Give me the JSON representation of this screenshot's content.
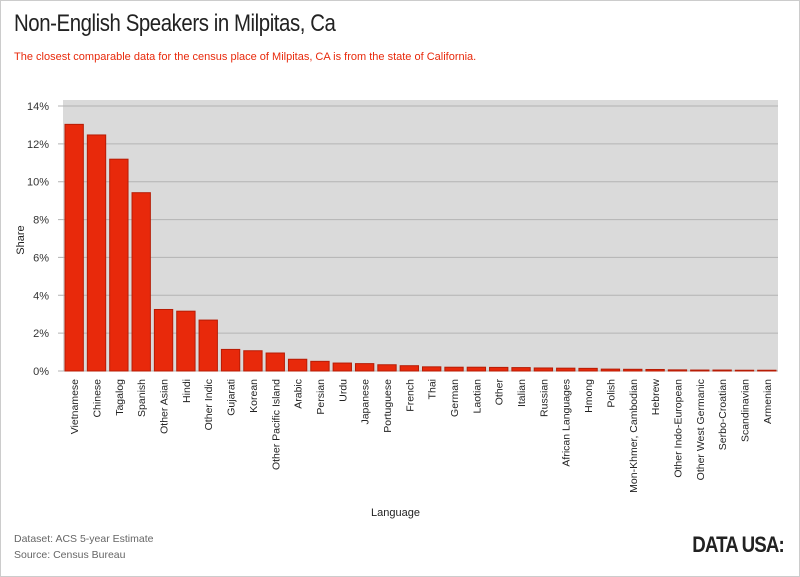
{
  "title": "Non-English Speakers in Milpitas, Ca",
  "subtitle": "The closest comparable data for the census place of Milpitas, CA is from the state of California.",
  "footer": {
    "dataset": "Dataset: ACS 5-year Estimate",
    "source": "Source: Census Bureau",
    "logo": "DATA USA:"
  },
  "colors": {
    "bar": "#e8290b",
    "bar_stroke": "#b71c05",
    "plot_bg": "#dadada",
    "grid": "#b3b3b3",
    "subtitle": "#e8290b"
  },
  "chart_data": {
    "type": "bar",
    "xlabel": "Language",
    "ylabel": "Share",
    "ylim": [
      0,
      14
    ],
    "yticks": [
      "0%",
      "2%",
      "4%",
      "6%",
      "8%",
      "10%",
      "12%",
      "14%"
    ],
    "grid": true,
    "categories": [
      "Vietnamese",
      "Chinese",
      "Tagalog",
      "Spanish",
      "Other Asian",
      "Hindi",
      "Other Indic",
      "Gujarati",
      "Korean",
      "Other Pacific Island",
      "Arabic",
      "Persian",
      "Urdu",
      "Japanese",
      "Portuguese",
      "French",
      "Thai",
      "German",
      "Laotian",
      "Other",
      "Italian",
      "Russian",
      "African Languages",
      "Hmong",
      "Polish",
      "Mon-Khmer, Cambodian",
      "Hebrew",
      "Other Indo-European",
      "Other West Germanic",
      "Serbo-Croatian",
      "Scandinavian",
      "Armenian"
    ],
    "values": [
      13.03,
      12.47,
      11.19,
      9.42,
      3.25,
      3.16,
      2.69,
      1.14,
      1.07,
      0.95,
      0.62,
      0.51,
      0.42,
      0.39,
      0.33,
      0.28,
      0.22,
      0.2,
      0.2,
      0.19,
      0.18,
      0.16,
      0.15,
      0.14,
      0.1,
      0.09,
      0.08,
      0.06,
      0.05,
      0.05,
      0.04,
      0.04
    ]
  }
}
